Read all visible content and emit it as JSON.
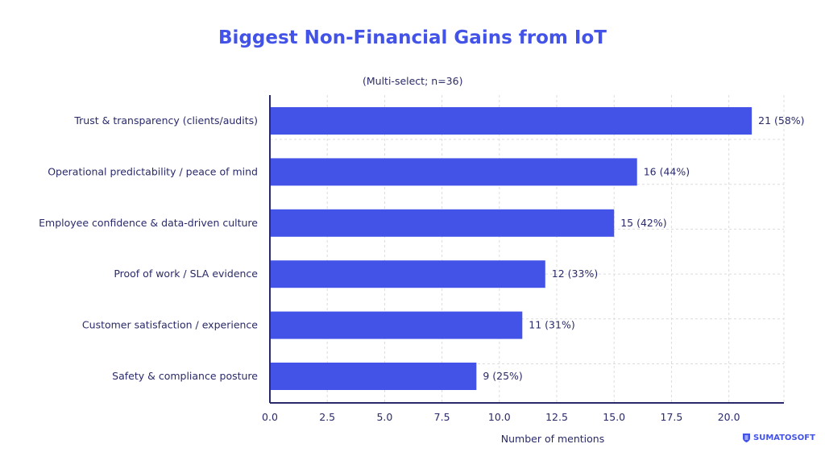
{
  "chart_data": {
    "type": "bar",
    "orientation": "horizontal",
    "title": "Biggest Non-Financial Gains from IoT",
    "subtitle": "(Multi-select; n=36)",
    "xlabel": "Number of mentions",
    "ylabel": "",
    "categories": [
      "Trust & transparency (clients/audits)",
      "Operational predictability / peace of mind",
      "Employee confidence & data-driven culture",
      "Proof of work / SLA evidence",
      "Customer satisfaction / experience",
      "Safety & compliance posture"
    ],
    "values": [
      21,
      16,
      15,
      12,
      11,
      9
    ],
    "data_labels": [
      "21 (58%)",
      "16 (44%)",
      "15 (42%)",
      "12 (33%)",
      "11 (31%)",
      "9 (25%)"
    ],
    "xticks": [
      "0.0",
      "2.5",
      "5.0",
      "7.5",
      "10.0",
      "12.5",
      "15.0",
      "17.5",
      "20.0"
    ],
    "xlim": [
      0,
      22.4
    ],
    "grid": true,
    "bar_color": "#4353e8"
  },
  "logo": {
    "text": "SUMATOSOFT",
    "color": "#4353e8"
  }
}
